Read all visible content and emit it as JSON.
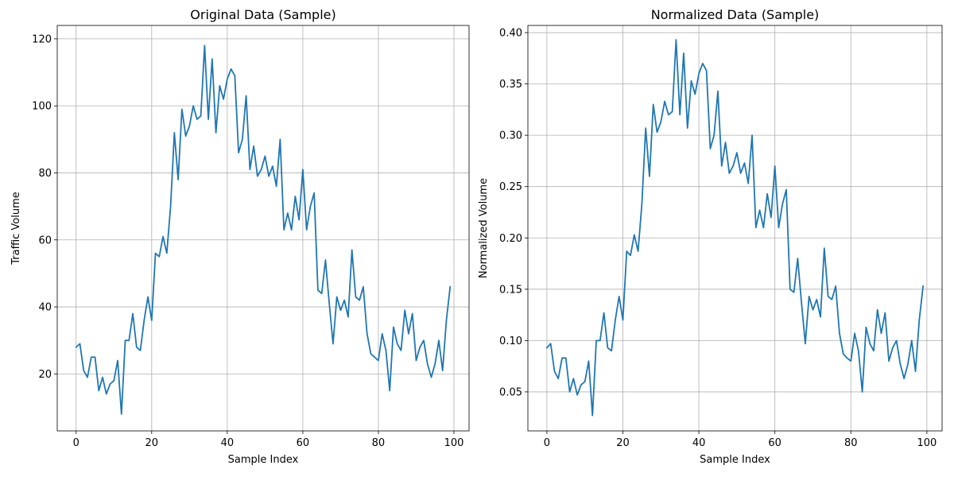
{
  "chart_data": [
    {
      "type": "line",
      "title": "Original Data (Sample)",
      "xlabel": "Sample Index",
      "ylabel": "Traffic Volume",
      "xlim": [
        -5,
        104
      ],
      "ylim": [
        3,
        124
      ],
      "xticks": [
        0,
        20,
        40,
        60,
        80,
        100
      ],
      "yticks": [
        20,
        40,
        60,
        80,
        100,
        120
      ],
      "ytick_labels": [
        "20",
        "40",
        "60",
        "80",
        "100",
        "120"
      ],
      "grid": true,
      "color": "#1f77b4",
      "series": [
        {
          "x": [
            0,
            1,
            2,
            3,
            4,
            5,
            6,
            7,
            8,
            9,
            10,
            11,
            12,
            13,
            14,
            15,
            16,
            17,
            18,
            19,
            20,
            21,
            22,
            23,
            24,
            25,
            26,
            27,
            28,
            29,
            30,
            31,
            32,
            33,
            34,
            35,
            36,
            37,
            38,
            39,
            40,
            41,
            42,
            43,
            44,
            45,
            46,
            47,
            48,
            49,
            50,
            51,
            52,
            53,
            54,
            55,
            56,
            57,
            58,
            59,
            60,
            61,
            62,
            63,
            64,
            65,
            66,
            67,
            68,
            69,
            70,
            71,
            72,
            73,
            74,
            75,
            76,
            77,
            78,
            79,
            80,
            81,
            82,
            83,
            84,
            85,
            86,
            87,
            88,
            89,
            90,
            91,
            92,
            93,
            94,
            95,
            96,
            97,
            98,
            99
          ],
          "values": [
            28,
            29,
            21,
            19,
            25,
            25,
            15,
            19,
            14,
            17,
            18,
            24,
            8,
            30,
            30,
            38,
            28,
            27,
            36,
            43,
            36,
            56,
            55,
            61,
            56,
            70,
            92,
            78,
            99,
            91,
            94,
            100,
            96,
            97,
            118,
            96,
            114,
            92,
            106,
            102,
            108,
            111,
            109,
            86,
            90,
            103,
            81,
            88,
            79,
            81,
            85,
            79,
            82,
            76,
            90,
            63,
            68,
            63,
            73,
            66,
            81,
            63,
            70,
            74,
            45,
            44,
            54,
            41,
            29,
            43,
            39,
            42,
            37,
            57,
            43,
            42,
            46,
            32,
            26,
            25,
            24,
            32,
            27,
            15,
            34,
            29,
            27,
            39,
            32,
            38,
            24,
            28,
            30,
            23,
            19,
            23,
            30,
            21,
            36,
            46
          ]
        }
      ]
    },
    {
      "type": "line",
      "title": "Normalized Data (Sample)",
      "xlabel": "Sample Index",
      "ylabel": "Normalized Volume",
      "xlim": [
        -5,
        104
      ],
      "ylim": [
        0.012,
        0.407
      ],
      "xticks": [
        0,
        20,
        40,
        60,
        80,
        100
      ],
      "yticks": [
        0.05,
        0.1,
        0.15,
        0.2,
        0.25,
        0.3,
        0.35,
        0.4
      ],
      "ytick_labels": [
        "0.05",
        "0.10",
        "0.15",
        "0.20",
        "0.25",
        "0.30",
        "0.35",
        "0.40"
      ],
      "grid": true,
      "color": "#1f77b4",
      "series": [
        {
          "x": [
            0,
            1,
            2,
            3,
            4,
            5,
            6,
            7,
            8,
            9,
            10,
            11,
            12,
            13,
            14,
            15,
            16,
            17,
            18,
            19,
            20,
            21,
            22,
            23,
            24,
            25,
            26,
            27,
            28,
            29,
            30,
            31,
            32,
            33,
            34,
            35,
            36,
            37,
            38,
            39,
            40,
            41,
            42,
            43,
            44,
            45,
            46,
            47,
            48,
            49,
            50,
            51,
            52,
            53,
            54,
            55,
            56,
            57,
            58,
            59,
            60,
            61,
            62,
            63,
            64,
            65,
            66,
            67,
            68,
            69,
            70,
            71,
            72,
            73,
            74,
            75,
            76,
            77,
            78,
            79,
            80,
            81,
            82,
            83,
            84,
            85,
            86,
            87,
            88,
            89,
            90,
            91,
            92,
            93,
            94,
            95,
            96,
            97,
            98,
            99
          ],
          "values": [
            0.093,
            0.097,
            0.07,
            0.063,
            0.083,
            0.083,
            0.05,
            0.063,
            0.047,
            0.057,
            0.06,
            0.08,
            0.027,
            0.1,
            0.1,
            0.127,
            0.093,
            0.09,
            0.12,
            0.143,
            0.12,
            0.187,
            0.183,
            0.203,
            0.187,
            0.233,
            0.307,
            0.26,
            0.33,
            0.303,
            0.313,
            0.333,
            0.32,
            0.323,
            0.393,
            0.32,
            0.38,
            0.307,
            0.353,
            0.34,
            0.36,
            0.37,
            0.363,
            0.287,
            0.3,
            0.343,
            0.27,
            0.293,
            0.263,
            0.27,
            0.283,
            0.263,
            0.273,
            0.253,
            0.3,
            0.21,
            0.227,
            0.21,
            0.243,
            0.22,
            0.27,
            0.21,
            0.233,
            0.247,
            0.15,
            0.147,
            0.18,
            0.137,
            0.097,
            0.143,
            0.13,
            0.14,
            0.123,
            0.19,
            0.143,
            0.14,
            0.153,
            0.107,
            0.087,
            0.083,
            0.08,
            0.107,
            0.09,
            0.05,
            0.113,
            0.097,
            0.09,
            0.13,
            0.107,
            0.127,
            0.08,
            0.093,
            0.1,
            0.077,
            0.063,
            0.077,
            0.1,
            0.07,
            0.12,
            0.153
          ]
        }
      ]
    }
  ]
}
